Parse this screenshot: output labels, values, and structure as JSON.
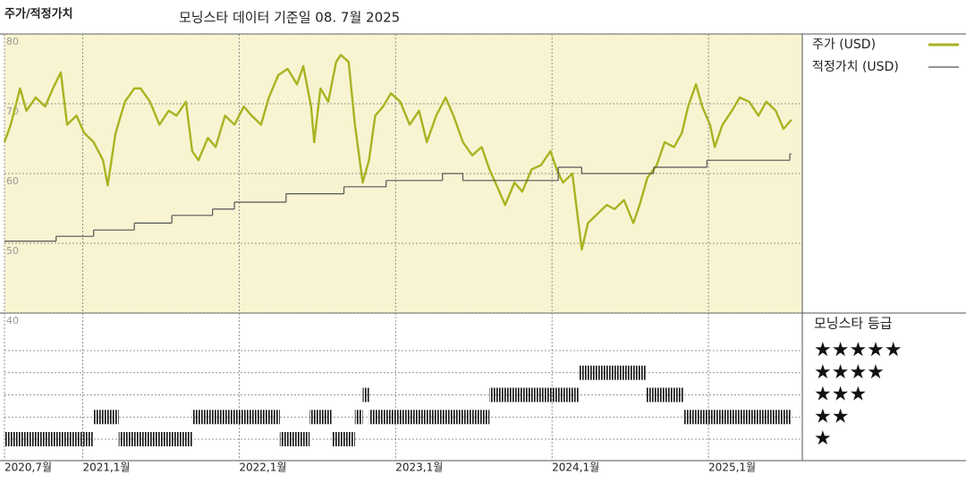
{
  "chart_data": {
    "type": "line",
    "title": "주가/적정가치",
    "subtitle": "모닝스타 데이터 기준일 08. 7월 2025",
    "xlim": [
      2020.5,
      2025.6
    ],
    "xticks": [
      {
        "value": 2020.5,
        "label": "2020,7월"
      },
      {
        "value": 2021,
        "label": "2021,1월"
      },
      {
        "value": 2022,
        "label": "2022,1월"
      },
      {
        "value": 2023,
        "label": "2023,1월"
      },
      {
        "value": 2024,
        "label": "2024,1월"
      },
      {
        "value": 2025,
        "label": "2025,1월"
      }
    ],
    "ylim": [
      40,
      80
    ],
    "yticks": [
      40,
      50,
      60,
      70,
      80
    ],
    "grid": true,
    "legend": "right",
    "series": [
      {
        "name": "주가 (USD)",
        "color": "#a9b321",
        "x": [
          2020.5,
          2020.54,
          2020.6,
          2020.64,
          2020.7,
          2020.76,
          2020.81,
          2020.86,
          2020.9,
          2020.96,
          2021.01,
          2021.07,
          2021.13,
          2021.16,
          2021.21,
          2021.27,
          2021.33,
          2021.37,
          2021.43,
          2021.49,
          2021.55,
          2021.6,
          2021.66,
          2021.7,
          2021.74,
          2021.8,
          2021.85,
          2021.91,
          2021.97,
          2022.03,
          2022.08,
          2022.14,
          2022.19,
          2022.25,
          2022.31,
          2022.37,
          2022.41,
          2022.46,
          2022.48,
          2022.52,
          2022.57,
          2022.62,
          2022.65,
          2022.7,
          2022.74,
          2022.79,
          2022.83,
          2022.87,
          2022.92,
          2022.97,
          2023.03,
          2023.09,
          2023.15,
          2023.2,
          2023.26,
          2023.32,
          2023.37,
          2023.43,
          2023.49,
          2023.55,
          2023.6,
          2023.65,
          2023.7,
          2023.76,
          2023.81,
          2023.87,
          2023.93,
          2023.99,
          2024.03,
          2024.07,
          2024.13,
          2024.19,
          2024.23,
          2024.29,
          2024.35,
          2024.4,
          2024.46,
          2024.52,
          2024.56,
          2024.61,
          2024.67,
          2024.72,
          2024.78,
          2024.83,
          2024.87,
          2024.92,
          2024.96,
          2025.01,
          2025.04,
          2025.09,
          2025.15,
          2025.2,
          2025.26,
          2025.32,
          2025.37,
          2025.43,
          2025.48,
          2025.53
        ],
        "values": [
          64.5,
          67,
          72.2,
          69,
          70.9,
          69.6,
          72.2,
          74.5,
          67,
          68.3,
          65.8,
          64.5,
          61.9,
          58.3,
          65.8,
          70.3,
          72.2,
          72.2,
          70.3,
          67,
          69,
          68.3,
          70.3,
          63.2,
          61.9,
          65.1,
          63.8,
          68.3,
          67,
          69.6,
          68.3,
          67,
          70.9,
          74.1,
          75,
          72.8,
          75.4,
          69.6,
          64.5,
          72.2,
          70.3,
          76,
          77,
          76,
          67,
          58.7,
          61.9,
          68.3,
          69.6,
          71.5,
          70.3,
          67,
          69,
          64.5,
          68.3,
          70.9,
          68.3,
          64.5,
          62.6,
          63.8,
          60.6,
          58.1,
          55.5,
          58.7,
          57.4,
          60.6,
          61.2,
          63.2,
          60.6,
          58.7,
          60,
          49.1,
          52.9,
          54.2,
          55.5,
          54.9,
          56.2,
          52.9,
          55.5,
          59.4,
          61.2,
          64.5,
          63.8,
          65.8,
          69.6,
          72.8,
          69.6,
          67,
          63.8,
          67,
          69,
          70.9,
          70.3,
          68.3,
          70.3,
          69,
          66.4,
          67.7
        ]
      },
      {
        "name": "적정가치 (USD)",
        "color": "#555555",
        "step": true,
        "x": [
          2020.5,
          2020.83,
          2021.07,
          2021.33,
          2021.57,
          2021.83,
          2021.97,
          2022.3,
          2022.67,
          2022.94,
          2023.3,
          2023.43,
          2024.04,
          2024.19,
          2024.65,
          2024.99,
          2025.52,
          2025.53
        ],
        "values": [
          50.3,
          51.0,
          51.9,
          52.9,
          54.0,
          54.9,
          55.9,
          57.1,
          58.1,
          59.0,
          60.0,
          59.0,
          60.9,
          60.0,
          60.9,
          61.9,
          62.8,
          62.8
        ]
      }
    ],
    "ratings": {
      "title": "모닝스타 등급",
      "labels": [
        "★★★★★",
        "★★★★",
        "★★★",
        "★★",
        "★"
      ],
      "x": [
        2020.5,
        2021.07,
        2021.23,
        2021.7,
        2022.26,
        2022.45,
        2022.59,
        2022.74,
        2022.79,
        2022.83,
        2023.6,
        2024.17,
        2024.6,
        2024.84
      ],
      "end": 2025.53,
      "values": [
        1,
        2,
        1,
        2,
        1,
        2,
        1,
        2,
        3,
        2,
        3,
        4,
        3,
        2
      ],
      "color": "#111111"
    }
  }
}
